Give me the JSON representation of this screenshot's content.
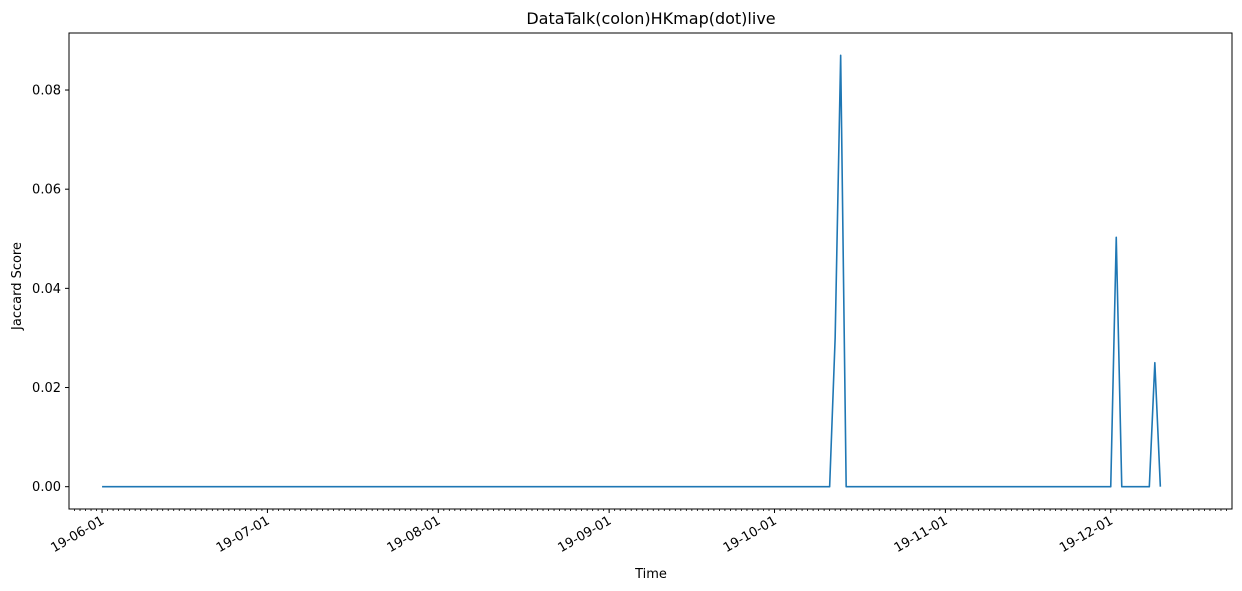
{
  "chart_data": {
    "type": "line",
    "title": "DataTalk(colon)HKmap(dot)live",
    "xlabel": "Time",
    "ylabel": "Jaccard Score",
    "x_axis_type": "date",
    "xlim": [
      "2019-05-26",
      "2019-12-23"
    ],
    "ylim": [
      -0.0045,
      0.0915
    ],
    "x_ticks": [
      {
        "date": "2019-06-01",
        "label": "19-06-01"
      },
      {
        "date": "2019-07-01",
        "label": "19-07-01"
      },
      {
        "date": "2019-08-01",
        "label": "19-08-01"
      },
      {
        "date": "2019-09-01",
        "label": "19-09-01"
      },
      {
        "date": "2019-10-01",
        "label": "19-10-01"
      },
      {
        "date": "2019-11-01",
        "label": "19-11-01"
      },
      {
        "date": "2019-12-01",
        "label": "19-12-01"
      }
    ],
    "y_ticks": [
      {
        "value": 0.0,
        "label": "0.00"
      },
      {
        "value": 0.02,
        "label": "0.02"
      },
      {
        "value": 0.04,
        "label": "0.04"
      },
      {
        "value": 0.06,
        "label": "0.06"
      },
      {
        "value": 0.08,
        "label": "0.08"
      }
    ],
    "minor_x_ticks": "daily",
    "grid": false,
    "legend": "none",
    "series": [
      {
        "color": "#1f77b4",
        "points": [
          {
            "x": "2019-06-01",
            "y": 0.0
          },
          {
            "x": "2019-10-11",
            "y": 0.0
          },
          {
            "x": "2019-10-12",
            "y": 0.03
          },
          {
            "x": "2019-10-13",
            "y": 0.087
          },
          {
            "x": "2019-10-14",
            "y": 0.0
          },
          {
            "x": "2019-12-01",
            "y": 0.0
          },
          {
            "x": "2019-12-02",
            "y": 0.0503
          },
          {
            "x": "2019-12-03",
            "y": 0.0
          },
          {
            "x": "2019-12-08",
            "y": 0.0
          },
          {
            "x": "2019-12-09",
            "y": 0.025
          },
          {
            "x": "2019-12-10",
            "y": 0.0
          }
        ]
      }
    ]
  }
}
